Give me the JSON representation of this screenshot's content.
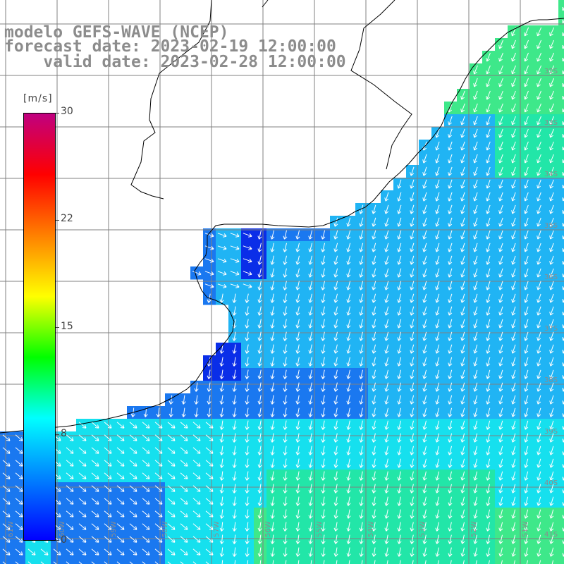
{
  "title": {
    "line1": "modelo GEFS-WAVE (NCEP)",
    "line2": "forecast date: 2023-02-19 12:00:00",
    "line3": "    valid date: 2023-02-28 12:00:00"
  },
  "colorbar": {
    "unit": "[m/s]",
    "ticks": [
      "30",
      "22",
      "15",
      "8",
      "0"
    ],
    "tick_values": [
      30,
      22,
      15,
      8,
      0
    ],
    "range": [
      0,
      30
    ],
    "colors": [
      "#0000ff",
      "#0080ff",
      "#00ffff",
      "#00ff00",
      "#ffff00",
      "#ff8000",
      "#ff0000",
      "#c00080"
    ]
  },
  "map": {
    "variable": "wind speed and direction",
    "grid_lines": true,
    "ocean_palette": {
      "dark_blue": "#0a2ee8",
      "blue": "#1a78f0",
      "light_blue": "#20b4f4",
      "cyan": "#16e0ee",
      "aqua_green": "#22e6a8",
      "green": "#3ee88a"
    },
    "land_color": "#ffffff",
    "coastline_color": "#000000",
    "arrow_color": "#ffffff",
    "lat_labels": [
      "32S",
      "33S",
      "34S",
      "35S",
      "36S",
      "37S",
      "38S",
      "39S",
      "40S",
      "41S"
    ],
    "lon_labels": [
      "61W",
      "60W",
      "59W",
      "58W",
      "57W",
      "56W",
      "55W",
      "54W",
      "53W",
      "52W",
      "51W"
    ]
  }
}
